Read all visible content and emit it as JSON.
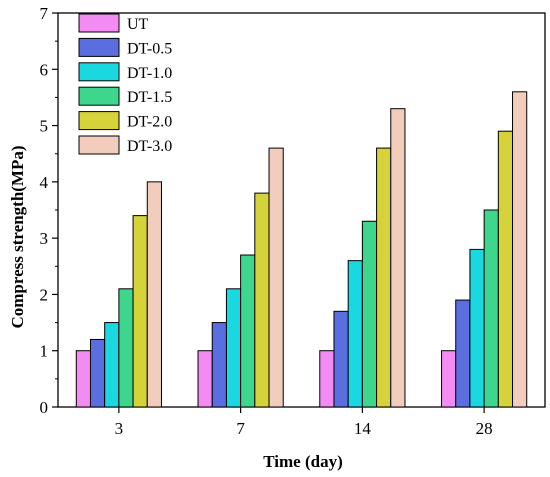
{
  "chart_data": {
    "type": "bar",
    "title": "",
    "xlabel": "Time (day)",
    "ylabel": "Compress strength(MPa)",
    "categories": [
      "3",
      "7",
      "14",
      "28"
    ],
    "ylim": [
      0,
      7
    ],
    "yticks": [
      "0",
      "1",
      "2",
      "3",
      "4",
      "5",
      "6",
      "7"
    ],
    "legend_position": "top-left",
    "grid": false,
    "series": [
      {
        "name": "UT",
        "color": "#f28cf2",
        "values": [
          1.0,
          1.0,
          1.0,
          1.0
        ]
      },
      {
        "name": "DT-0.5",
        "color": "#5a6ee0",
        "values": [
          1.2,
          1.5,
          1.7,
          1.9
        ]
      },
      {
        "name": "DT-1.0",
        "color": "#19d8e0",
        "values": [
          1.5,
          2.1,
          2.6,
          2.8
        ]
      },
      {
        "name": "DT-1.5",
        "color": "#3ed68c",
        "values": [
          2.1,
          2.7,
          3.3,
          3.5
        ]
      },
      {
        "name": "DT-2.0",
        "color": "#d6d23a",
        "values": [
          3.4,
          3.8,
          4.6,
          4.9
        ]
      },
      {
        "name": "DT-3.0",
        "color": "#f2cdbd",
        "values": [
          4.0,
          4.6,
          5.3,
          5.6
        ]
      }
    ]
  }
}
